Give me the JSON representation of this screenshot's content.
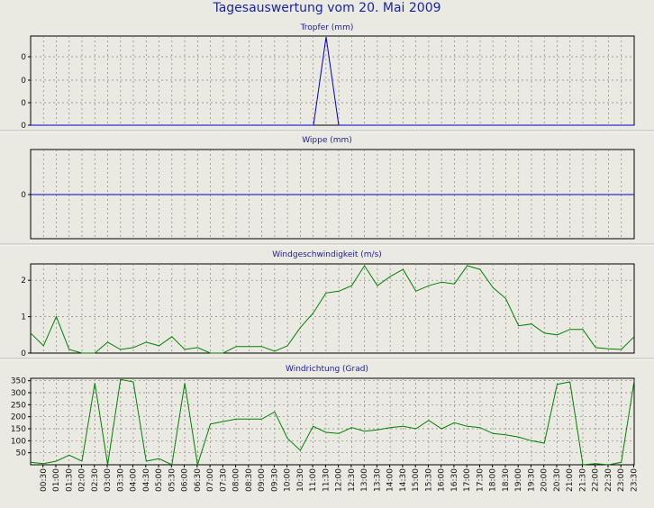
{
  "title": "Tagesauswertung vom 20. Mai 2009",
  "colors": {
    "background": "#eaeae3",
    "title": "#1a23a8",
    "grid": "#808080",
    "blue_series": "#0000cc",
    "green_series": "#008000"
  },
  "time_ticks": [
    "00:30",
    "01:00",
    "01:30",
    "02:00",
    "02:30",
    "03:00",
    "03:30",
    "04:00",
    "04:30",
    "05:00",
    "05:30",
    "06:00",
    "06:30",
    "07:00",
    "07:30",
    "08:00",
    "08:30",
    "09:00",
    "09:30",
    "10:00",
    "10:30",
    "11:00",
    "11:30",
    "12:00",
    "12:30",
    "13:00",
    "13:30",
    "14:00",
    "14:30",
    "15:00",
    "15:30",
    "16:00",
    "16:30",
    "17:00",
    "17:30",
    "18:00",
    "18:30",
    "19:00",
    "19:30",
    "20:00",
    "20:30",
    "21:00",
    "21:30",
    "22:00",
    "22:30",
    "23:00",
    "23:30"
  ],
  "chart_data": [
    {
      "type": "line",
      "title": "Tropfer (mm)",
      "yticks": [
        "0",
        "0",
        "0",
        "0"
      ],
      "ylim": [
        0,
        1
      ],
      "grid": true,
      "series": [
        {
          "color": "#0000cc",
          "values": [
            0,
            0,
            0,
            0,
            0,
            0,
            0,
            0,
            0,
            0,
            0,
            0,
            0,
            0,
            0,
            0,
            0,
            0,
            0,
            0,
            0,
            0,
            0,
            1,
            0,
            0,
            0,
            0,
            0,
            0,
            0,
            0,
            0,
            0,
            0,
            0,
            0,
            0,
            0,
            0,
            0,
            0,
            0,
            0,
            0,
            0,
            0,
            0
          ]
        }
      ]
    },
    {
      "type": "line",
      "title": "Wippe (mm)",
      "yticks": [
        "0"
      ],
      "ylim": [
        -1,
        1
      ],
      "grid": true,
      "series": [
        {
          "color": "#0000cc",
          "values": [
            0,
            0,
            0,
            0,
            0,
            0,
            0,
            0,
            0,
            0,
            0,
            0,
            0,
            0,
            0,
            0,
            0,
            0,
            0,
            0,
            0,
            0,
            0,
            0,
            0,
            0,
            0,
            0,
            0,
            0,
            0,
            0,
            0,
            0,
            0,
            0,
            0,
            0,
            0,
            0,
            0,
            0,
            0,
            0,
            0,
            0,
            0,
            0
          ]
        }
      ]
    },
    {
      "type": "line",
      "title": "Windgeschwindigkeit (m/s)",
      "yticks": [
        "0",
        "1",
        "2"
      ],
      "ytick_values": [
        0,
        1,
        2
      ],
      "ylim": [
        0,
        2.45
      ],
      "grid": true,
      "series": [
        {
          "color": "#008000",
          "values": [
            0.55,
            0.2,
            1.0,
            0.1,
            0.0,
            0.0,
            0.3,
            0.1,
            0.15,
            0.3,
            0.2,
            0.45,
            0.1,
            0.15,
            0.0,
            0.0,
            0.18,
            0.18,
            0.18,
            0.05,
            0.2,
            0.7,
            1.1,
            1.65,
            1.7,
            1.85,
            2.4,
            1.85,
            2.1,
            2.3,
            1.7,
            1.85,
            1.95,
            1.9,
            2.4,
            2.3,
            1.8,
            1.5,
            0.75,
            0.8,
            0.55,
            0.5,
            0.65,
            0.65,
            0.15,
            0.12,
            0.1,
            0.45
          ]
        }
      ]
    },
    {
      "type": "line",
      "title": "Windrichtung (Grad)",
      "yticks": [
        "50",
        "100",
        "150",
        "200",
        "250",
        "300",
        "350"
      ],
      "ytick_values": [
        50,
        100,
        150,
        200,
        250,
        300,
        350
      ],
      "ylim": [
        0,
        360
      ],
      "grid": true,
      "series": [
        {
          "color": "#008000",
          "values": [
            10,
            5,
            15,
            40,
            15,
            340,
            0,
            355,
            345,
            15,
            25,
            0,
            340,
            0,
            170,
            180,
            190,
            190,
            190,
            220,
            110,
            60,
            160,
            135,
            130,
            155,
            140,
            145,
            155,
            160,
            150,
            185,
            150,
            175,
            160,
            155,
            130,
            125,
            115,
            100,
            90,
            335,
            345,
            0,
            5,
            0,
            10,
            350
          ]
        }
      ]
    }
  ]
}
